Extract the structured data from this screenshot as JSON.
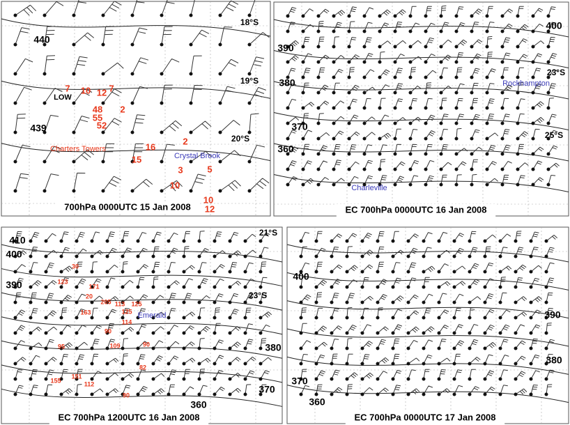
{
  "panels": [
    {
      "caption": "700hPa 0000UTC 15 Jan 2008",
      "contours": [
        "440",
        "439"
      ],
      "latitudes": [
        "18°S",
        "19°S",
        "20°S"
      ],
      "places": [
        "LOW",
        "Charters Towers",
        "Crystal Brook"
      ],
      "observations": [
        7,
        10,
        12,
        7,
        48,
        2,
        55,
        52,
        16,
        2,
        15,
        3,
        5,
        10,
        10,
        12
      ]
    },
    {
      "caption": "EC 700hPa 0000UTC 16 Jan 2008",
      "contours": [
        "400",
        "390",
        "380",
        "370",
        "360"
      ],
      "latitudes": [
        "23°S",
        "25°S"
      ],
      "places": [
        "Rockhampton",
        "Charleville"
      ],
      "observations": []
    },
    {
      "caption": "EC 700hPa 1200UTC 16 Jan 2008",
      "contours": [
        "410",
        "400",
        "390",
        "380",
        "370",
        "360"
      ],
      "latitudes": [
        "21°S",
        "23°S"
      ],
      "places": [
        "Emerald"
      ],
      "observations": [
        30,
        123,
        171,
        20,
        205,
        113,
        125,
        163,
        125,
        114,
        90,
        95,
        109,
        90,
        82,
        155,
        151,
        112,
        90
      ]
    },
    {
      "caption": "EC 700hPa 0000UTC 17 Jan 2008",
      "contours": [
        "400",
        "390",
        "380",
        "370",
        "360"
      ],
      "latitudes": [],
      "places": [],
      "observations": []
    }
  ]
}
